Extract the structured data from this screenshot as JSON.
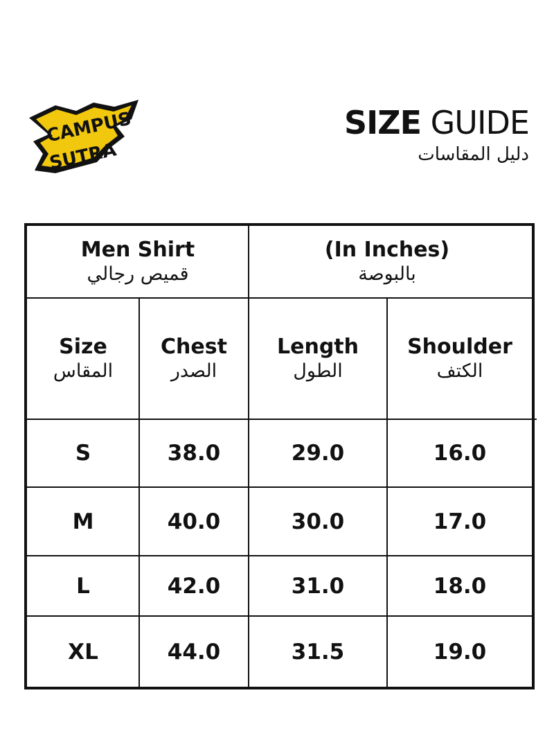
{
  "brand": {
    "logo_text": "CAMPUS SUTRA",
    "colors": {
      "yellow": "#f2c80f",
      "black": "#111111"
    }
  },
  "header": {
    "title_bold": "SIZE",
    "title_light": "GUIDE",
    "subtitle_ar": "دليل المقاسات"
  },
  "table": {
    "product_en": "Men Shirt",
    "product_ar": "قميص رجالي",
    "unit_en": "(In Inches)",
    "unit_ar": "بالبوصة",
    "columns": [
      {
        "en": "Size",
        "ar": "المقاس"
      },
      {
        "en": "Chest",
        "ar": "الصدر"
      },
      {
        "en": "Length",
        "ar": "الطول"
      },
      {
        "en": "Shoulder",
        "ar": "الكتف"
      }
    ],
    "rows": [
      [
        "S",
        "38.0",
        "29.0",
        "16.0"
      ],
      [
        "M",
        "40.0",
        "30.0",
        "17.0"
      ],
      [
        "L",
        "42.0",
        "31.0",
        "18.0"
      ],
      [
        "XL",
        "44.0",
        "31.5",
        "19.0"
      ]
    ]
  }
}
